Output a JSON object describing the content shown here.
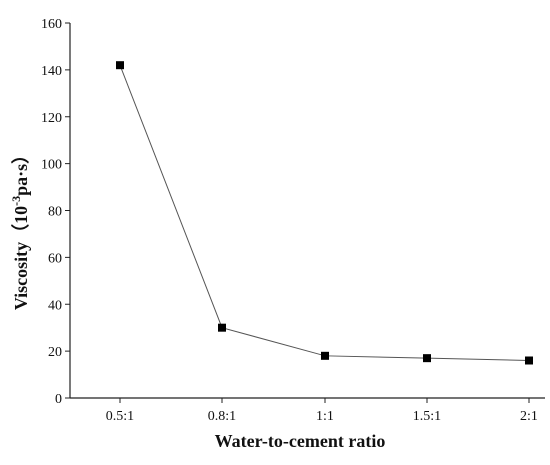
{
  "chart_data": {
    "type": "line",
    "title": "",
    "xlabel": "Water-to-cement ratio",
    "ylabel_main": "Viscosity（10",
    "ylabel_sup": "-3",
    "ylabel_tail": "pa·s）",
    "categories": [
      "0.5:1",
      "0.8:1",
      "1:1",
      "1.5:1",
      "2:1"
    ],
    "series": [
      {
        "values": [
          142,
          30,
          18,
          17,
          16
        ]
      }
    ],
    "ylim": [
      0,
      160
    ],
    "yticks": [
      0,
      20,
      40,
      60,
      80,
      100,
      120,
      140,
      160
    ],
    "grid": false,
    "marker": "square",
    "marker_color": "#000000",
    "line_color": "#555555"
  }
}
